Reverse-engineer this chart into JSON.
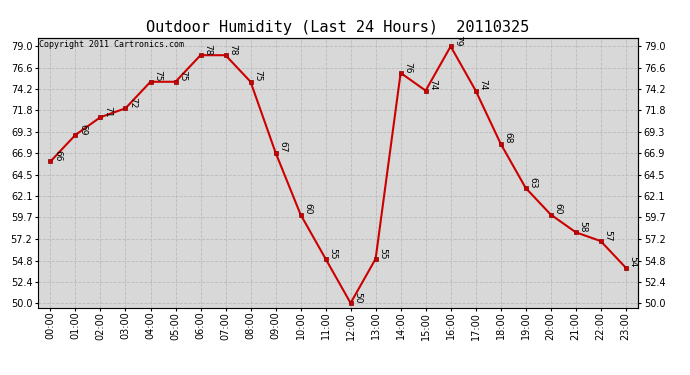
{
  "title": "Outdoor Humidity (Last 24 Hours)  20110325",
  "copyright": "Copyright 2011 Cartronics.com",
  "hours": [
    "00:00",
    "01:00",
    "02:00",
    "03:00",
    "04:00",
    "05:00",
    "06:00",
    "07:00",
    "08:00",
    "09:00",
    "10:00",
    "11:00",
    "12:00",
    "13:00",
    "14:00",
    "15:00",
    "16:00",
    "17:00",
    "18:00",
    "19:00",
    "20:00",
    "21:00",
    "22:00",
    "23:00"
  ],
  "values": [
    66,
    69,
    71,
    72,
    75,
    75,
    78,
    78,
    75,
    67,
    60,
    55,
    50,
    55,
    76,
    74,
    79,
    74,
    68,
    63,
    60,
    58,
    57,
    54
  ],
  "yticks": [
    50.0,
    52.4,
    54.8,
    57.2,
    59.7,
    62.1,
    64.5,
    66.9,
    69.3,
    71.8,
    74.2,
    76.6,
    79.0
  ],
  "ymin": 49.5,
  "ymax": 80.0,
  "line_color": "#cc0000",
  "marker_color": "#cc0000",
  "bg_color": "#d8d8d8",
  "grid_color": "#bbbbbb",
  "title_fontsize": 11,
  "tick_fontsize": 7,
  "label_fontsize": 6.5,
  "copyright_fontsize": 6
}
